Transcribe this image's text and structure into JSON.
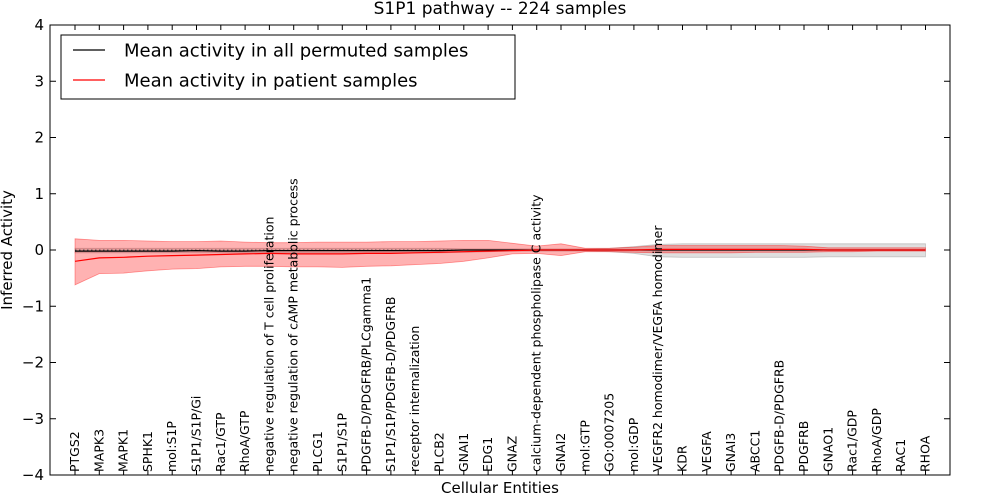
{
  "chart_data": {
    "type": "line",
    "title": "S1P1 pathway -- 224 samples",
    "xlabel": "Cellular Entities",
    "ylabel": "Inferred Activity",
    "ylim": [
      -4,
      4
    ],
    "yticks": [
      -4,
      -3,
      -2,
      -1,
      0,
      1,
      2,
      3,
      4
    ],
    "ytick_labels": [
      "−4",
      "−3",
      "−2",
      "−1",
      "0",
      "1",
      "2",
      "3",
      "4"
    ],
    "legend_location": "top-left",
    "categories": [
      "PTGS2",
      "MAPK3",
      "MAPK1",
      "SPHK1",
      "mol:S1P",
      "S1P1/S1P/Gi",
      "Rac1/GTP",
      "RhoA/GTP",
      "negative regulation of T cell proliferation",
      "negative regulation of cAMP metabolic process",
      "PLCG1",
      "S1P1/S1P",
      "PDGFB-D/PDGFRB/PLCgamma1",
      "S1P1/S1P/PDGFB-D/PDGFRB",
      "receptor internalization",
      "PLCB2",
      "GNAI1",
      "EDG1",
      "GNAZ",
      "calcium-dependent phospholipase C activity",
      "GNAI2",
      "mol:GTP",
      "GO:0007205",
      "mol:GDP",
      "VEGFR2 homodimer/VEGFA homodimer",
      "KDR",
      "VEGFA",
      "GNAI3",
      "ABCC1",
      "PDGFB-D/PDGFRB",
      "PDGFRB",
      "GNAO1",
      "Rac1/GDP",
      "RhoA/GDP",
      "RAC1",
      "RHOA"
    ],
    "series": [
      {
        "name": "Mean activity in all permuted samples",
        "color": "#000000",
        "values": [
          -0.02,
          -0.02,
          -0.02,
          -0.02,
          -0.02,
          -0.01,
          -0.02,
          -0.02,
          -0.01,
          -0.01,
          -0.01,
          -0.01,
          -0.01,
          -0.01,
          -0.01,
          -0.01,
          0.0,
          0.0,
          0.0,
          0.0,
          0.0,
          0.0,
          0.0,
          0.0,
          0.0,
          0.0,
          0.0,
          0.0,
          0.0,
          0.0,
          0.0,
          0.0,
          0.0,
          0.0,
          0.0,
          0.0
        ],
        "band_lower": [
          -0.05,
          -0.05,
          -0.05,
          -0.05,
          -0.05,
          -0.05,
          -0.05,
          -0.05,
          -0.05,
          -0.05,
          -0.05,
          -0.05,
          -0.05,
          -0.05,
          -0.05,
          -0.05,
          -0.04,
          -0.03,
          -0.02,
          -0.02,
          -0.02,
          -0.02,
          -0.03,
          -0.06,
          -0.12,
          -0.13,
          -0.13,
          -0.13,
          -0.13,
          -0.13,
          -0.13,
          -0.12,
          -0.12,
          -0.12,
          -0.12,
          -0.12
        ],
        "band_upper": [
          0.03,
          0.03,
          0.03,
          0.03,
          0.03,
          0.03,
          0.03,
          0.03,
          0.03,
          0.03,
          0.03,
          0.03,
          0.03,
          0.03,
          0.03,
          0.03,
          0.02,
          0.02,
          0.02,
          0.02,
          0.02,
          0.02,
          0.03,
          0.06,
          0.1,
          0.11,
          0.11,
          0.11,
          0.11,
          0.11,
          0.11,
          0.11,
          0.11,
          0.11,
          0.11,
          0.11
        ]
      },
      {
        "name": "Mean activity in patient samples",
        "color": "#ff0000",
        "values": [
          -0.2,
          -0.14,
          -0.13,
          -0.11,
          -0.1,
          -0.09,
          -0.08,
          -0.07,
          -0.06,
          -0.07,
          -0.07,
          -0.07,
          -0.06,
          -0.06,
          -0.05,
          -0.04,
          -0.03,
          -0.02,
          -0.01,
          0.0,
          0.0,
          0.0,
          0.0,
          0.0,
          0.01,
          0.01,
          0.01,
          0.01,
          0.01,
          0.01,
          0.01,
          0.0,
          0.0,
          0.0,
          0.0,
          0.0
        ],
        "band_lower": [
          -0.62,
          -0.42,
          -0.41,
          -0.37,
          -0.34,
          -0.33,
          -0.3,
          -0.29,
          -0.29,
          -0.3,
          -0.3,
          -0.31,
          -0.29,
          -0.28,
          -0.26,
          -0.24,
          -0.2,
          -0.14,
          -0.07,
          -0.06,
          -0.1,
          -0.03,
          -0.03,
          -0.04,
          -0.05,
          -0.05,
          -0.05,
          -0.05,
          -0.04,
          -0.04,
          -0.04,
          -0.03,
          -0.03,
          -0.02,
          -0.02,
          -0.02
        ],
        "band_upper": [
          0.2,
          0.17,
          0.17,
          0.16,
          0.15,
          0.15,
          0.16,
          0.14,
          0.13,
          0.13,
          0.14,
          0.14,
          0.14,
          0.15,
          0.15,
          0.16,
          0.17,
          0.17,
          0.12,
          0.07,
          0.11,
          0.03,
          0.03,
          0.05,
          0.08,
          0.08,
          0.08,
          0.08,
          0.08,
          0.08,
          0.07,
          0.04,
          0.04,
          0.04,
          0.04,
          0.04
        ]
      }
    ]
  }
}
